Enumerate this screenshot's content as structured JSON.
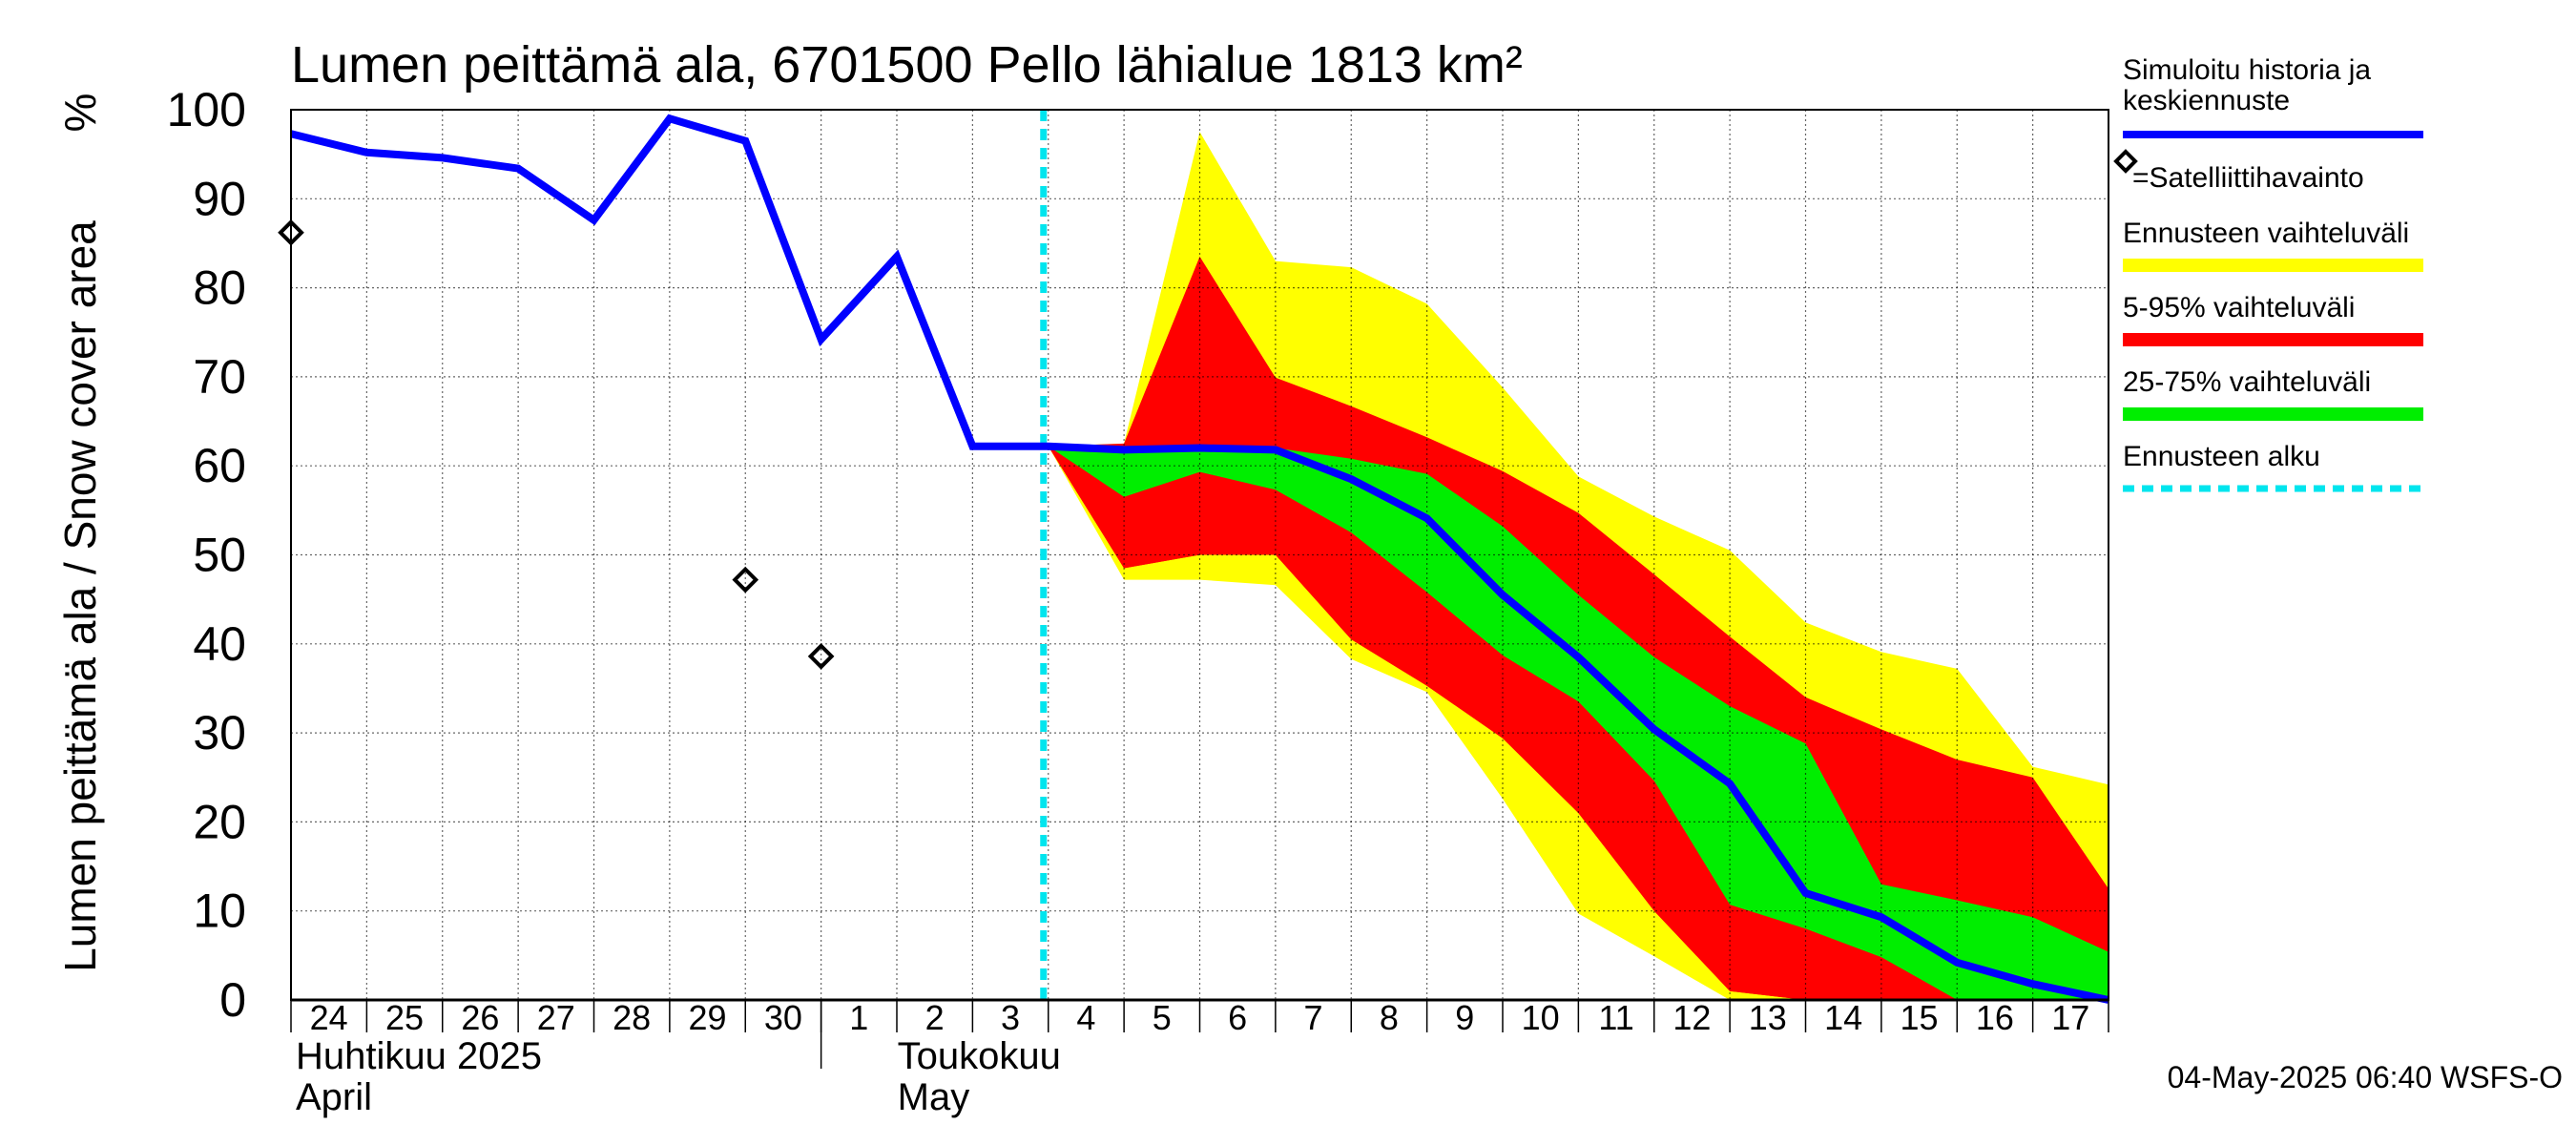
{
  "chart_data": {
    "type": "area",
    "title": "Lumen peittämä ala, 6701500 Pello lähialue 1813 km²",
    "ylabel": "Lumen peittämä ala / Snow cover area",
    "yunit": "%",
    "ylim": [
      0,
      100
    ],
    "yticks": [
      0,
      10,
      20,
      30,
      40,
      50,
      60,
      70,
      80,
      90,
      100
    ],
    "x_dates": [
      "2025-04-24",
      "2025-04-25",
      "2025-04-26",
      "2025-04-27",
      "2025-04-28",
      "2025-04-29",
      "2025-04-30",
      "2025-05-01",
      "2025-05-02",
      "2025-05-03",
      "2025-05-04",
      "2025-05-05",
      "2025-05-06",
      "2025-05-07",
      "2025-05-08",
      "2025-05-09",
      "2025-05-10",
      "2025-05-11",
      "2025-05-12",
      "2025-05-13",
      "2025-05-14",
      "2025-05-15",
      "2025-05-16",
      "2025-05-17"
    ],
    "xlim": [
      "2025-04-24",
      "2025-05-18"
    ],
    "xtick_labels": [
      "24",
      "25",
      "26",
      "27",
      "28",
      "29",
      "30",
      "1",
      "2",
      "3",
      "4",
      "5",
      "6",
      "7",
      "8",
      "9",
      "10",
      "11",
      "12",
      "13",
      "14",
      "15",
      "16",
      "17"
    ],
    "month_labels": [
      {
        "fi": "Huhtikuu  2025",
        "en": "April",
        "start": "2025-04-24"
      },
      {
        "fi": "Toukokuu",
        "en": "May",
        "start": "2025-05-01"
      }
    ],
    "grid": true,
    "forecast_start": "2025-05-04",
    "series": [
      {
        "name": "Simuloitu historia ja keskiennuste",
        "color": "#0000ff",
        "x": [
          "2025-04-24",
          "2025-04-25",
          "2025-04-26",
          "2025-04-27",
          "2025-04-28",
          "2025-04-29",
          "2025-04-30",
          "2025-05-01",
          "2025-05-02",
          "2025-05-03",
          "2025-05-04",
          "2025-05-05",
          "2025-05-06",
          "2025-05-07",
          "2025-05-08",
          "2025-05-09",
          "2025-05-10",
          "2025-05-11",
          "2025-05-12",
          "2025-05-13",
          "2025-05-14",
          "2025-05-15",
          "2025-05-16",
          "2025-05-17",
          "2025-05-18"
        ],
        "y": [
          97.3,
          95.2,
          94.6,
          93.4,
          87.6,
          99.0,
          96.5,
          74.2,
          83.5,
          62.2,
          62.2,
          61.8,
          62.0,
          61.8,
          58.5,
          54.1,
          45.5,
          38.5,
          30.4,
          24.3,
          12.0,
          9.3,
          4.2,
          1.8,
          0.0
        ]
      }
    ],
    "bands": [
      {
        "name": "Ennusteen vaihteluväli",
        "color": "#ffff00",
        "x": [
          "2025-05-04",
          "2025-05-05",
          "2025-05-06",
          "2025-05-07",
          "2025-05-08",
          "2025-05-09",
          "2025-05-10",
          "2025-05-11",
          "2025-05-12",
          "2025-05-13",
          "2025-05-14",
          "2025-05-15",
          "2025-05-16",
          "2025-05-17",
          "2025-05-18"
        ],
        "upper": [
          62.2,
          62.5,
          97.5,
          83.0,
          82.3,
          78.2,
          68.8,
          58.8,
          54.3,
          50.5,
          42.4,
          39.1,
          37.2,
          26.2,
          24.2
        ],
        "lower": [
          62.2,
          47.2,
          47.2,
          46.6,
          38.3,
          34.6,
          22.6,
          9.7,
          4.9,
          0.0,
          0.0,
          0.0,
          0.0,
          0.0,
          0.0
        ]
      },
      {
        "name": "5-95% vaihteluväli",
        "color": "#ff0000",
        "x": [
          "2025-05-04",
          "2025-05-05",
          "2025-05-06",
          "2025-05-07",
          "2025-05-08",
          "2025-05-09",
          "2025-05-10",
          "2025-05-11",
          "2025-05-12",
          "2025-05-13",
          "2025-05-14",
          "2025-05-15",
          "2025-05-16",
          "2025-05-17",
          "2025-05-18"
        ],
        "upper": [
          62.2,
          62.5,
          83.5,
          69.9,
          66.7,
          63.2,
          59.4,
          54.7,
          47.8,
          40.8,
          34.0,
          30.4,
          27.0,
          25.0,
          12.5
        ],
        "lower": [
          62.2,
          48.5,
          50.0,
          50.0,
          40.5,
          35.3,
          29.4,
          21.0,
          10.0,
          1.0,
          0.0,
          0.0,
          0.0,
          0.0,
          0.0
        ]
      },
      {
        "name": "25-75% vaihteluväli",
        "color": "#00ee00",
        "x": [
          "2025-05-04",
          "2025-05-05",
          "2025-05-06",
          "2025-05-07",
          "2025-05-08",
          "2025-05-09",
          "2025-05-10",
          "2025-05-11",
          "2025-05-12",
          "2025-05-13",
          "2025-05-14",
          "2025-05-15",
          "2025-05-16",
          "2025-05-17",
          "2025-05-18"
        ],
        "upper": [
          62.2,
          61.8,
          62.0,
          62.0,
          60.8,
          59.1,
          53.2,
          45.5,
          38.5,
          33.0,
          28.8,
          13.0,
          11.2,
          9.3,
          5.4
        ],
        "lower": [
          62.2,
          56.5,
          59.3,
          57.3,
          52.5,
          45.8,
          38.7,
          33.5,
          24.6,
          10.7,
          8.0,
          4.8,
          0.0,
          0.0,
          0.0
        ]
      },
      {
        "name": "5-95% vaihteluväli (alaosa)",
        "color": "#ff0000",
        "x": [
          "2025-05-04",
          "2025-05-05",
          "2025-05-06",
          "2025-05-07",
          "2025-05-08",
          "2025-05-09",
          "2025-05-10",
          "2025-05-11",
          "2025-05-12",
          "2025-05-13",
          "2025-05-14",
          "2025-05-15",
          "2025-05-16",
          "2025-05-17",
          "2025-05-18"
        ],
        "upper": [
          62.2,
          56.5,
          59.3,
          57.3,
          52.5,
          45.8,
          38.7,
          33.5,
          24.6,
          10.7,
          8.0,
          4.8,
          0.0,
          0.0,
          0.0
        ],
        "lower": [
          62.2,
          48.5,
          50.0,
          50.0,
          40.5,
          35.3,
          29.4,
          21.0,
          10.0,
          1.0,
          0.0,
          0.0,
          0.0,
          0.0,
          0.0
        ],
        "legend": false
      }
    ],
    "observations": {
      "name": "=Satelliittihavainto",
      "x": [
        "2025-04-24",
        "2025-04-30",
        "2025-05-01"
      ],
      "y": [
        86.2,
        47.2,
        38.6
      ]
    },
    "legend": {
      "placement": "right",
      "entries": [
        {
          "label": "Simuloitu historia ja keskiennuste",
          "kind": "line",
          "color": "#0000ff"
        },
        {
          "label": "=Satelliittihavainto",
          "kind": "marker",
          "color": "#000000"
        },
        {
          "label": "Ennusteen vaihteluväli",
          "kind": "band",
          "color": "#ffff00"
        },
        {
          "label": "5-95% vaihteluväli",
          "kind": "band",
          "color": "#ff0000"
        },
        {
          "label": "25-75% vaihteluväli",
          "kind": "band",
          "color": "#00ee00"
        },
        {
          "label": "Ennusteen alku",
          "kind": "dashed",
          "color": "#00e5ee"
        }
      ]
    },
    "timestamp": "04-May-2025 06:40 WSFS-O"
  }
}
